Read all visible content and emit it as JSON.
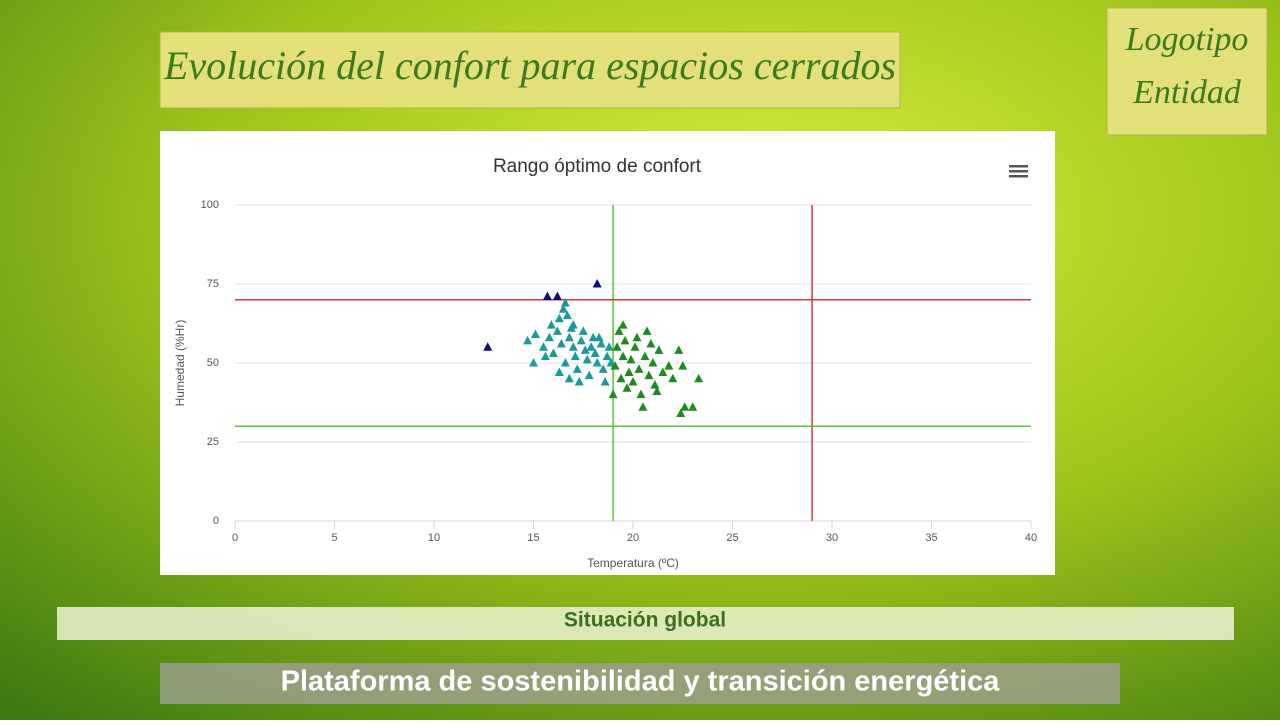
{
  "header": {
    "title": "Evolución del confort para espacios cerrados",
    "logo": [
      "Logotipo",
      "Entidad"
    ]
  },
  "section": "Situación global",
  "footer": "Plataforma de sostenibilidad y transición energética",
  "chart_data": {
    "type": "scatter",
    "title": "Rango óptimo de confort",
    "x_label": "Temperatura (ºC)",
    "y_label": "Humedad (%Hr)",
    "xlim": [
      0,
      40
    ],
    "xticks": [
      0,
      5,
      10,
      15,
      20,
      25,
      30,
      35,
      40
    ],
    "ylim": [
      0,
      100
    ],
    "yticks": [
      0,
      25,
      50,
      75,
      100
    ],
    "grid": true,
    "reference_lines": [
      {
        "axis": "x",
        "value": 19,
        "color": "#5cc03c"
      },
      {
        "axis": "x",
        "value": 29,
        "color": "#d9383a"
      },
      {
        "axis": "y",
        "value": 70,
        "color": "#d9383a"
      },
      {
        "axis": "y",
        "value": 30,
        "color": "#5cc03c"
      }
    ],
    "series": [
      {
        "color": "#0d0d7a",
        "x": [
          12.7,
          15.7,
          16.2,
          18.2
        ],
        "values": [
          55,
          71,
          71,
          75
        ]
      },
      {
        "color": "#1a9a9a",
        "x": [
          14.7,
          15.1,
          15.0,
          15.5,
          15.8,
          15.9,
          16.0,
          16.2,
          16.3,
          16.5,
          16.6,
          16.7,
          16.4,
          16.8,
          16.9,
          17.0,
          17.1,
          17.2,
          16.3,
          16.6,
          17.4,
          17.5,
          17.6,
          17.7,
          17.8,
          17.9,
          18.0,
          18.1,
          18.2,
          18.4,
          18.5,
          18.6,
          18.7,
          18.8,
          18.9,
          17.3,
          16.8,
          15.6,
          18.3,
          17.0
        ],
        "values": [
          57,
          59,
          50,
          55,
          58,
          62,
          53,
          60,
          64,
          67,
          69,
          65,
          56,
          58,
          61,
          55,
          52,
          48,
          47,
          50,
          57,
          60,
          54,
          51,
          46,
          55,
          58,
          53,
          50,
          56,
          48,
          44,
          52,
          55,
          50,
          44,
          45,
          52,
          58,
          62
        ]
      },
      {
        "color": "#1f8a1f",
        "x": [
          19.1,
          19.2,
          19.3,
          19.4,
          19.5,
          19.6,
          19.7,
          19.8,
          19.9,
          20.0,
          20.1,
          20.2,
          20.3,
          20.4,
          20.5,
          20.6,
          20.8,
          20.9,
          21.0,
          21.1,
          21.3,
          21.5,
          21.8,
          22.0,
          22.3,
          22.4,
          22.5,
          22.6,
          23.0,
          23.3,
          19.0,
          19.5,
          20.7,
          21.2
        ],
        "values": [
          49,
          55,
          60,
          45,
          52,
          57,
          42,
          47,
          51,
          44,
          55,
          58,
          48,
          40,
          36,
          52,
          46,
          56,
          50,
          43,
          54,
          47,
          49,
          45,
          54,
          34,
          49,
          36,
          36,
          45,
          40,
          62,
          60,
          41
        ]
      }
    ]
  }
}
